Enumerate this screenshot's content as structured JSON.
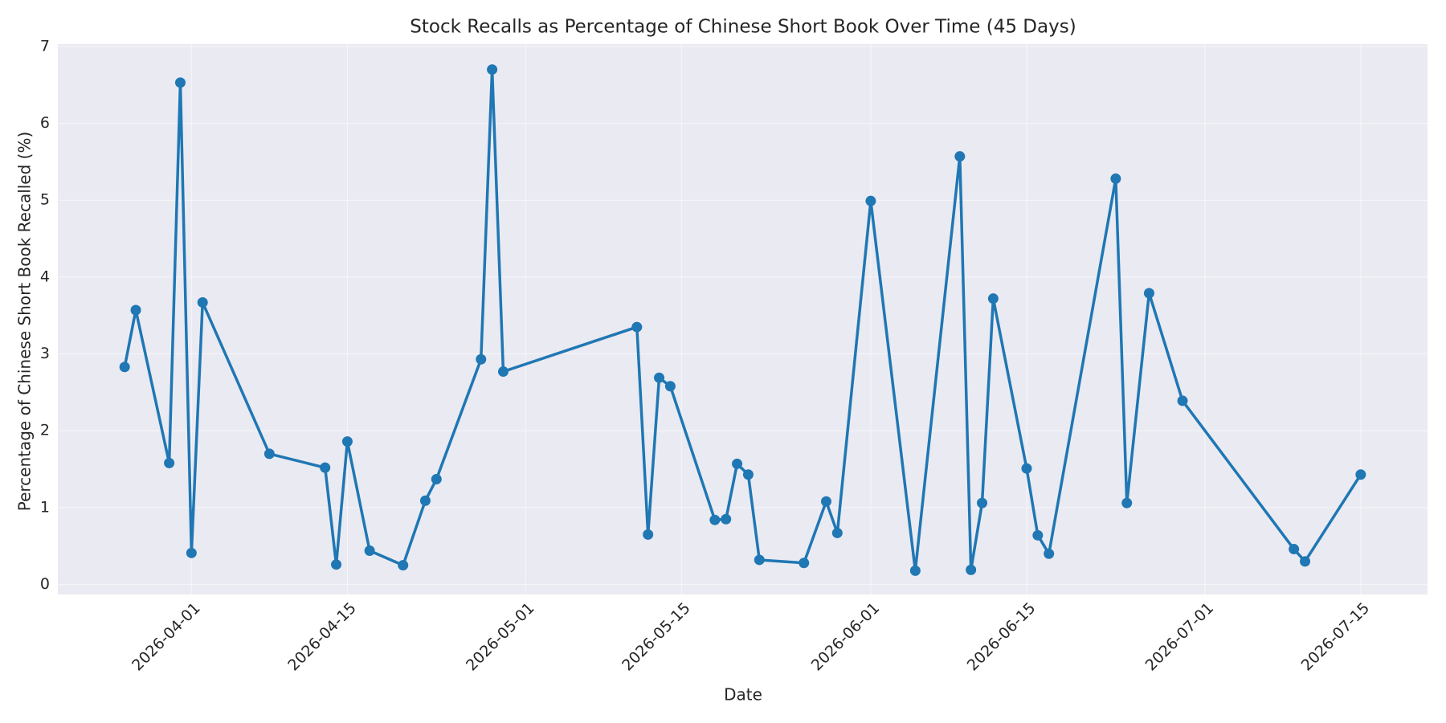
{
  "chart_data": {
    "type": "line",
    "title": "Stock Recalls as Percentage of Chinese Short Book Over Time (45 Days)",
    "x_label": "Date",
    "y_label": "Percentage of Chinese Short Book Recalled (%)",
    "x": [
      "2026-03-26",
      "2026-03-27",
      "2026-03-30",
      "2026-03-31",
      "2026-04-01",
      "2026-04-02",
      "2026-04-08",
      "2026-04-13",
      "2026-04-14",
      "2026-04-15",
      "2026-04-17",
      "2026-04-20",
      "2026-04-22",
      "2026-04-23",
      "2026-04-27",
      "2026-04-28",
      "2026-04-29",
      "2026-05-11",
      "2026-05-12",
      "2026-05-13",
      "2026-05-14",
      "2026-05-18",
      "2026-05-19",
      "2026-05-20",
      "2026-05-21",
      "2026-05-22",
      "2026-05-26",
      "2026-05-28",
      "2026-05-29",
      "2026-06-01",
      "2026-06-05",
      "2026-06-09",
      "2026-06-10",
      "2026-06-11",
      "2026-06-12",
      "2026-06-15",
      "2026-06-16",
      "2026-06-17",
      "2026-06-23",
      "2026-06-24",
      "2026-06-26",
      "2026-06-29",
      "2026-07-09",
      "2026-07-10",
      "2026-07-15"
    ],
    "values": [
      2.83,
      3.57,
      1.58,
      6.53,
      0.41,
      3.67,
      1.7,
      1.52,
      0.26,
      1.86,
      0.44,
      0.25,
      1.09,
      1.37,
      2.93,
      6.7,
      2.77,
      3.35,
      0.65,
      2.69,
      2.58,
      0.84,
      0.85,
      1.57,
      1.43,
      0.32,
      0.28,
      1.08,
      0.67,
      4.99,
      0.18,
      5.57,
      0.19,
      1.06,
      3.72,
      1.51,
      0.64,
      0.4,
      5.28,
      1.06,
      3.79,
      2.39,
      0.46,
      0.3,
      1.43
    ],
    "color": "#1f77b4",
    "xlim": [
      "2026-03-20",
      "2026-07-21"
    ],
    "xticks": [
      "2026-04-01",
      "2026-04-15",
      "2026-05-01",
      "2026-05-15",
      "2026-06-01",
      "2026-06-15",
      "2026-07-01",
      "2026-07-15"
    ],
    "ylim": [
      -0.13,
      7.03
    ],
    "yticks": [
      0,
      1,
      2,
      3,
      4,
      5,
      6,
      7
    ],
    "grid": true
  }
}
